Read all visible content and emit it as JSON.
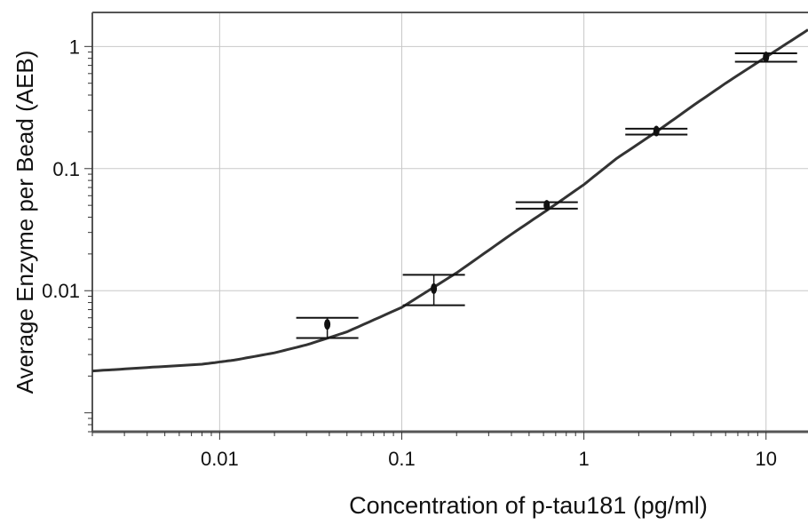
{
  "chart_data": {
    "type": "scatter",
    "title": "",
    "xlabel": "Concentration of p-tau181 (pg/ml)",
    "ylabel": "Average Enzyme per Bead (AEB)",
    "x_scale": "log",
    "y_scale": "log",
    "xlim": [
      0.002,
      17
    ],
    "ylim": [
      0.0007,
      1.9
    ],
    "grid": true,
    "legend": "none",
    "x_ticks": [
      {
        "value": 0.01,
        "label": "0.01"
      },
      {
        "value": 0.1,
        "label": "0.1"
      },
      {
        "value": 1,
        "label": "1"
      },
      {
        "value": 10,
        "label": "10"
      }
    ],
    "y_ticks": [
      {
        "value": 0.01,
        "label": "0.01"
      },
      {
        "value": 0.1,
        "label": "0.1"
      },
      {
        "value": 1,
        "label": "1"
      }
    ],
    "series": [
      {
        "kind": "points",
        "color": "#111111",
        "points": [
          {
            "x": 0.039,
            "y": 0.0053,
            "y_low": 0.0041,
            "y_high": 0.006
          },
          {
            "x": 0.15,
            "y": 0.0104,
            "y_low": 0.0076,
            "y_high": 0.0135
          },
          {
            "x": 0.625,
            "y": 0.05,
            "y_low": 0.047,
            "y_high": 0.053
          },
          {
            "x": 2.5,
            "y": 0.203,
            "y_low": 0.19,
            "y_high": 0.212
          },
          {
            "x": 10,
            "y": 0.82,
            "y_low": 0.75,
            "y_high": 0.88
          }
        ]
      },
      {
        "kind": "fit-curve",
        "color": "#333333",
        "points": [
          {
            "x": 0.002,
            "y": 0.0022
          },
          {
            "x": 0.004,
            "y": 0.00235
          },
          {
            "x": 0.008,
            "y": 0.0025
          },
          {
            "x": 0.012,
            "y": 0.0027
          },
          {
            "x": 0.02,
            "y": 0.0031
          },
          {
            "x": 0.03,
            "y": 0.0036
          },
          {
            "x": 0.05,
            "y": 0.0046
          },
          {
            "x": 0.1,
            "y": 0.0073
          },
          {
            "x": 0.2,
            "y": 0.014
          },
          {
            "x": 0.4,
            "y": 0.029
          },
          {
            "x": 0.7,
            "y": 0.051
          },
          {
            "x": 1,
            "y": 0.074
          },
          {
            "x": 1.5,
            "y": 0.12
          },
          {
            "x": 2.5,
            "y": 0.2
          },
          {
            "x": 4,
            "y": 0.33
          },
          {
            "x": 6,
            "y": 0.5
          },
          {
            "x": 10,
            "y": 0.82
          },
          {
            "x": 17,
            "y": 1.37
          }
        ]
      }
    ]
  }
}
